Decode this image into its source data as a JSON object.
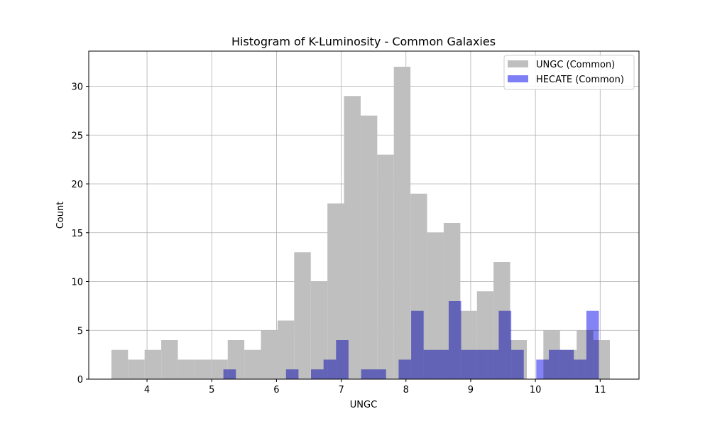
{
  "chart_data": {
    "type": "bar",
    "title": "Histogram of K-Luminosity - Common Galaxies",
    "xlabel": "UNGC",
    "ylabel": "Count",
    "xlim": [
      3.1,
      11.6
    ],
    "ylim": [
      0,
      33.6
    ],
    "x_ticks": [
      4,
      5,
      6,
      7,
      8,
      9,
      10,
      11
    ],
    "y_ticks": [
      0,
      5,
      10,
      15,
      20,
      25,
      30
    ],
    "grid": true,
    "legend_position": "upper right",
    "series": [
      {
        "name": "UNGC (Common)",
        "color": "#bfbfbf",
        "bin_edges": [
          3.45,
          3.707,
          3.963,
          4.22,
          4.477,
          4.733,
          4.99,
          5.247,
          5.503,
          5.76,
          6.017,
          6.273,
          6.53,
          6.787,
          7.043,
          7.3,
          7.557,
          7.813,
          8.07,
          8.327,
          8.583,
          8.84,
          9.097,
          9.353,
          9.61,
          9.867,
          10.123,
          10.38,
          10.637,
          10.893,
          11.15
        ],
        "counts": [
          3,
          2,
          3,
          4,
          2,
          2,
          2,
          4,
          3,
          5,
          6,
          13,
          10,
          18,
          29,
          27,
          23,
          32,
          19,
          15,
          16,
          7,
          9,
          12,
          4,
          0,
          5,
          3,
          5,
          4
        ]
      },
      {
        "name": "HECATE (Common)",
        "color": "#7f7ff5",
        "bin_edges": [
          5.18,
          5.373,
          5.567,
          5.76,
          5.953,
          6.147,
          6.34,
          6.533,
          6.727,
          6.92,
          7.113,
          7.307,
          7.5,
          7.693,
          7.887,
          8.08,
          8.273,
          8.467,
          8.66,
          8.853,
          9.047,
          9.24,
          9.433,
          9.627,
          9.82,
          10.013,
          10.207,
          10.4,
          10.593,
          10.787,
          10.98
        ],
        "counts": [
          1,
          0,
          0,
          0,
          0,
          1,
          0,
          1,
          2,
          4,
          0,
          1,
          1,
          0,
          2,
          7,
          3,
          3,
          8,
          3,
          3,
          3,
          7,
          3,
          0,
          2,
          3,
          3,
          2,
          7
        ]
      }
    ]
  }
}
